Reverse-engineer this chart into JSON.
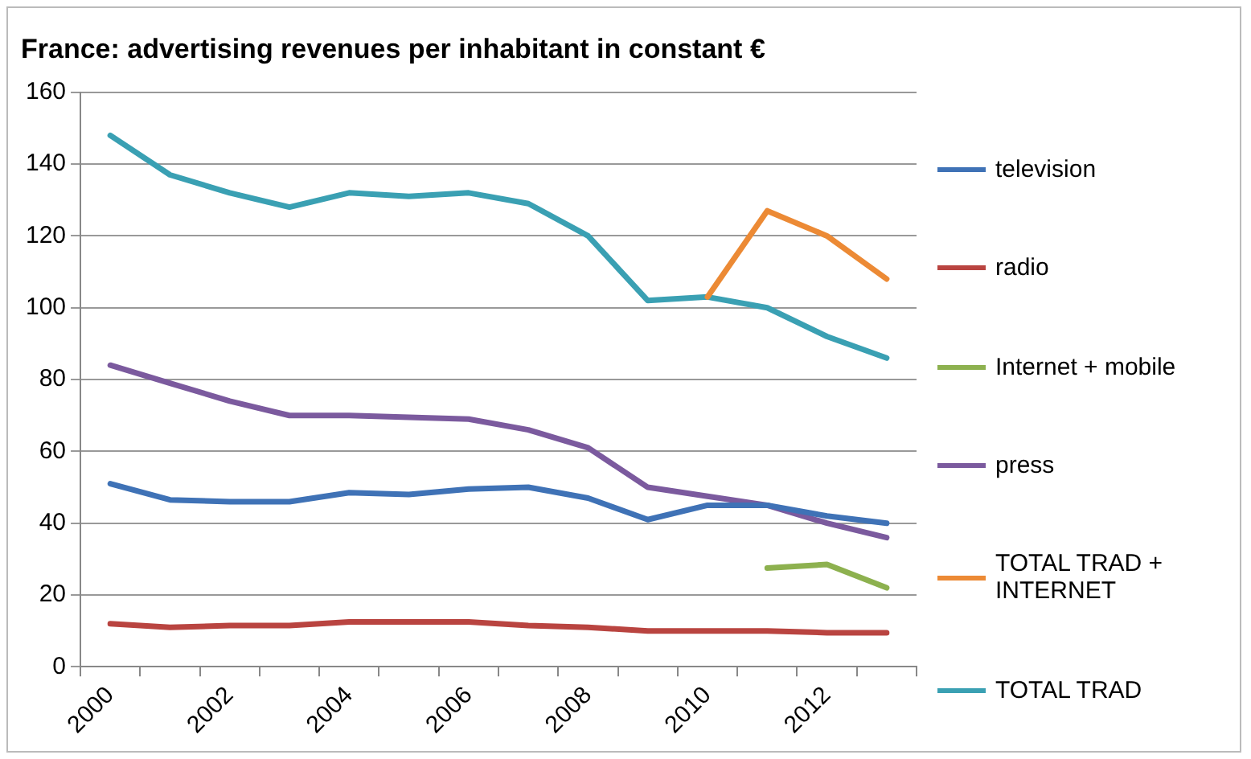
{
  "chart_data": {
    "type": "line",
    "title": "France: advertising revenues per inhabitant in constant €",
    "categories": [
      "2000",
      null,
      "2002",
      null,
      "2004",
      null,
      "2006",
      null,
      "2008",
      null,
      "2010",
      null,
      "2012",
      null
    ],
    "series": [
      {
        "name": "television",
        "color": "#3f72b6",
        "values": [
          51,
          46.5,
          46,
          46,
          48.5,
          48,
          49.5,
          50,
          47,
          41,
          45,
          45,
          42,
          40
        ]
      },
      {
        "name": "radio",
        "color": "#b94440",
        "values": [
          12,
          11,
          11.5,
          11.5,
          12.5,
          12.5,
          12.5,
          11.5,
          11,
          10,
          10,
          10,
          9.5,
          9.5
        ]
      },
      {
        "name": "Internet + mobile",
        "color": "#8db14f",
        "values": [
          null,
          null,
          null,
          null,
          null,
          null,
          null,
          null,
          null,
          null,
          null,
          27.5,
          28.5,
          22
        ]
      },
      {
        "name": "press",
        "color": "#7b5a9e",
        "values": [
          84,
          79,
          74,
          70,
          70,
          69.5,
          69,
          66,
          61,
          50,
          47.5,
          45,
          40,
          36
        ]
      },
      {
        "name": "TOTAL TRAD + INTERNET",
        "color": "#ec8a35",
        "values": [
          null,
          null,
          null,
          null,
          null,
          null,
          null,
          null,
          null,
          null,
          103,
          127,
          120,
          108
        ]
      },
      {
        "name": "TOTAL TRAD",
        "color": "#3aa0b3",
        "values": [
          148,
          137,
          132,
          128,
          132,
          131,
          132,
          129,
          120,
          102,
          103,
          100,
          92,
          86
        ]
      }
    ],
    "ylim": [
      0,
      160
    ],
    "yticks": [
      0,
      20,
      40,
      60,
      80,
      100,
      120,
      140,
      160
    ],
    "grid": "y",
    "legend": "right",
    "marker": "none",
    "line_style": "solid"
  }
}
